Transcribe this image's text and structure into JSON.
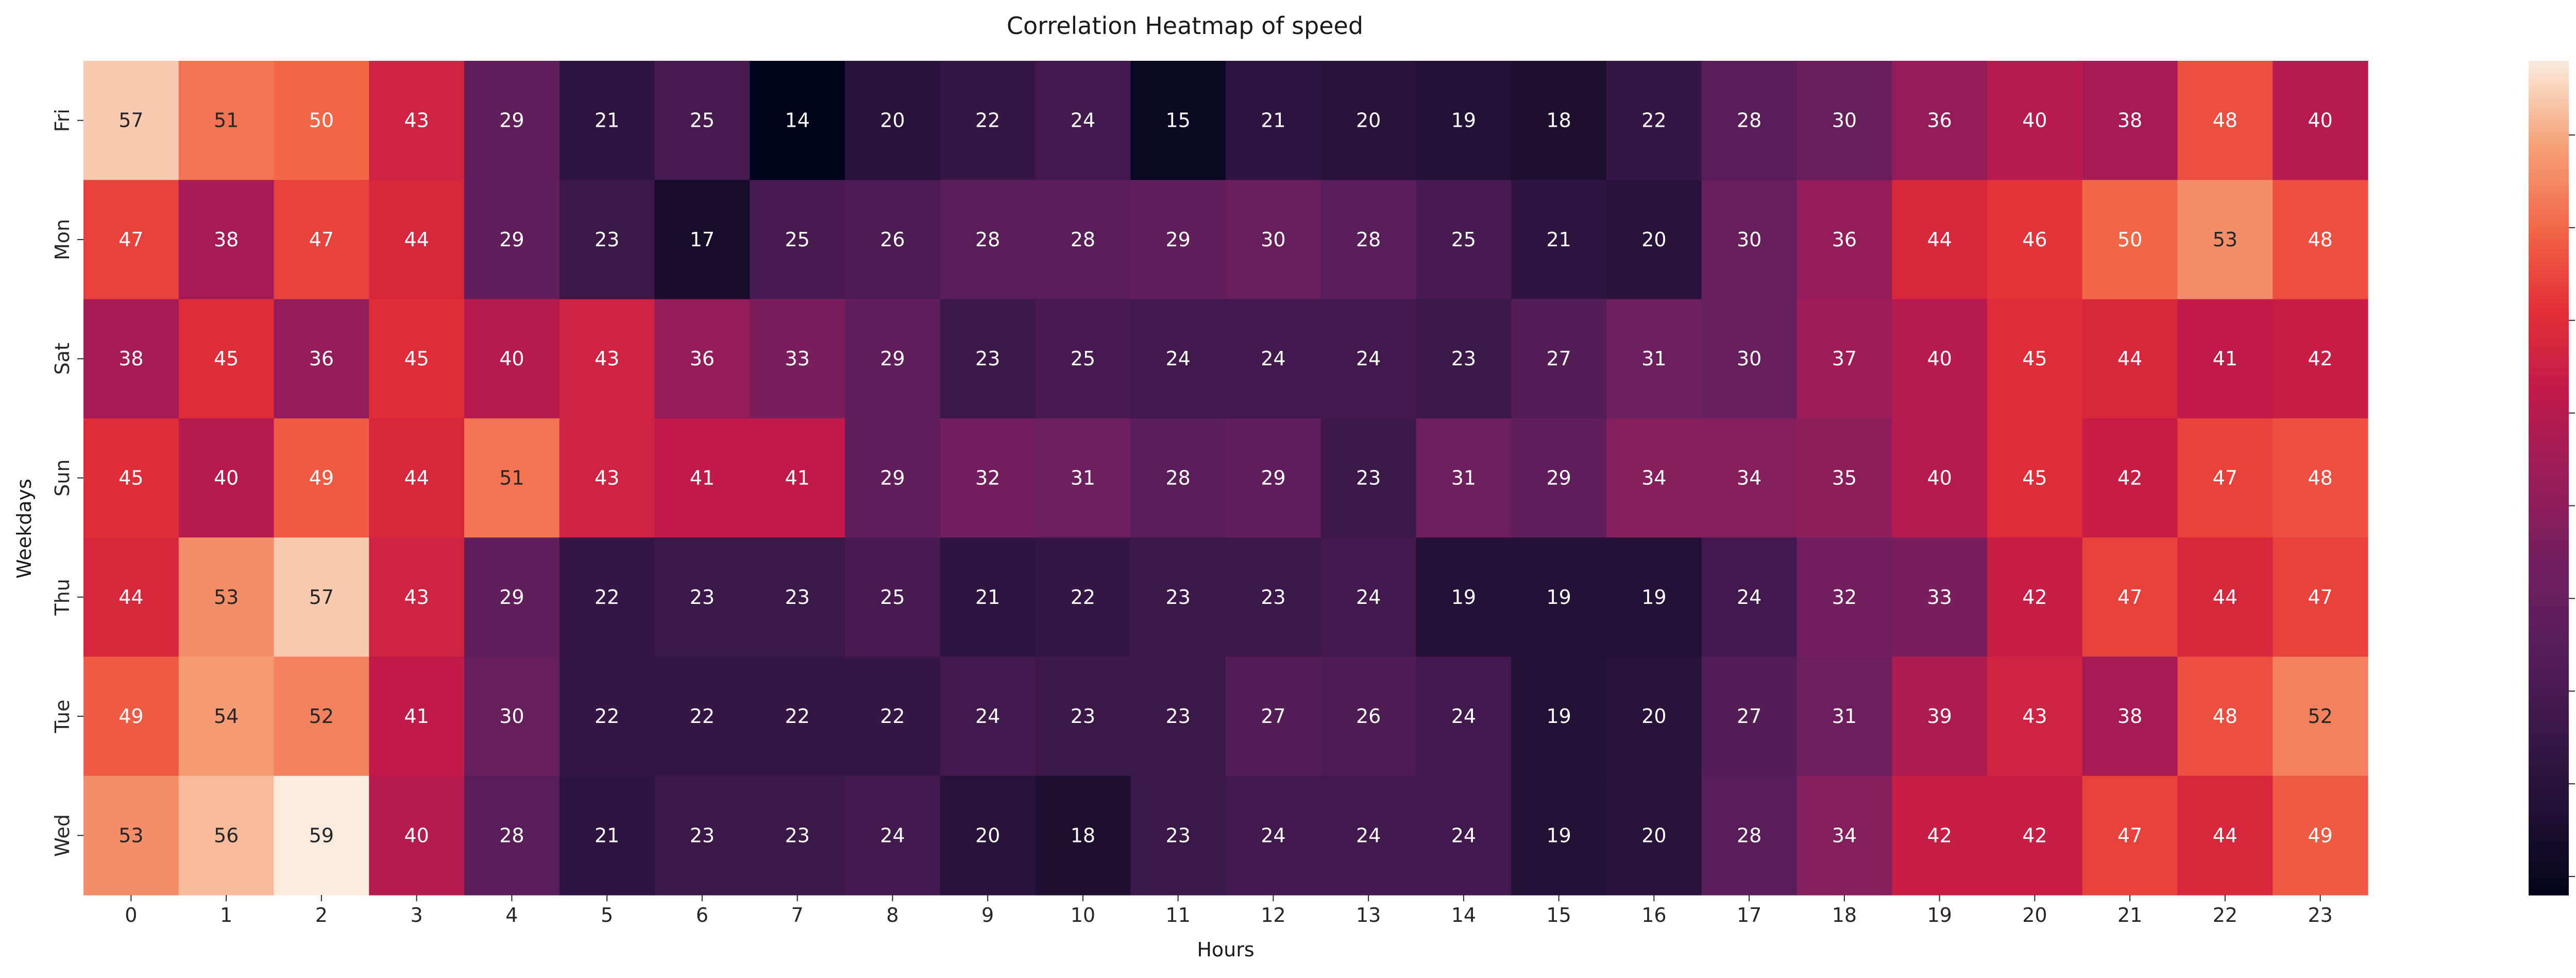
{
  "chart_data": {
    "type": "heatmap",
    "title": "Correlation Heatmap of speed",
    "xlabel": "Hours",
    "ylabel": "Weekdays",
    "x_categories": [
      "0",
      "1",
      "2",
      "3",
      "4",
      "5",
      "6",
      "7",
      "8",
      "9",
      "10",
      "11",
      "12",
      "13",
      "14",
      "15",
      "16",
      "17",
      "18",
      "19",
      "20",
      "21",
      "22",
      "23"
    ],
    "y_categories": [
      "Fri",
      "Mon",
      "Sat",
      "Sun",
      "Thu",
      "Tue",
      "Wed"
    ],
    "values": [
      [
        57,
        51,
        50,
        43,
        29,
        21,
        25,
        14,
        20,
        22,
        24,
        15,
        21,
        20,
        19,
        18,
        22,
        28,
        30,
        36,
        40,
        38,
        48,
        40
      ],
      [
        47,
        38,
        47,
        44,
        29,
        23,
        17,
        25,
        26,
        28,
        28,
        29,
        30,
        28,
        25,
        21,
        20,
        30,
        36,
        44,
        46,
        50,
        53,
        48
      ],
      [
        38,
        45,
        36,
        45,
        40,
        43,
        36,
        33,
        29,
        23,
        25,
        24,
        24,
        24,
        23,
        27,
        31,
        30,
        37,
        40,
        45,
        44,
        41,
        42
      ],
      [
        45,
        40,
        49,
        44,
        51,
        43,
        41,
        41,
        29,
        32,
        31,
        28,
        29,
        23,
        31,
        29,
        34,
        34,
        35,
        40,
        45,
        42,
        47,
        48
      ],
      [
        44,
        53,
        57,
        43,
        29,
        22,
        23,
        23,
        25,
        21,
        22,
        23,
        23,
        24,
        19,
        19,
        19,
        24,
        32,
        33,
        42,
        47,
        44,
        47
      ],
      [
        49,
        54,
        52,
        41,
        30,
        22,
        22,
        22,
        22,
        24,
        23,
        23,
        27,
        26,
        24,
        19,
        20,
        27,
        31,
        39,
        43,
        38,
        48,
        52
      ],
      [
        53,
        56,
        59,
        40,
        28,
        21,
        23,
        23,
        24,
        20,
        18,
        23,
        24,
        24,
        24,
        19,
        20,
        28,
        34,
        42,
        42,
        47,
        44,
        49
      ]
    ],
    "colorbar": {
      "min": 14,
      "max": 59,
      "ticks": [
        15,
        20,
        25,
        30,
        35,
        40,
        45,
        50,
        55
      ]
    },
    "colormap": "rocket",
    "annotations": true
  }
}
